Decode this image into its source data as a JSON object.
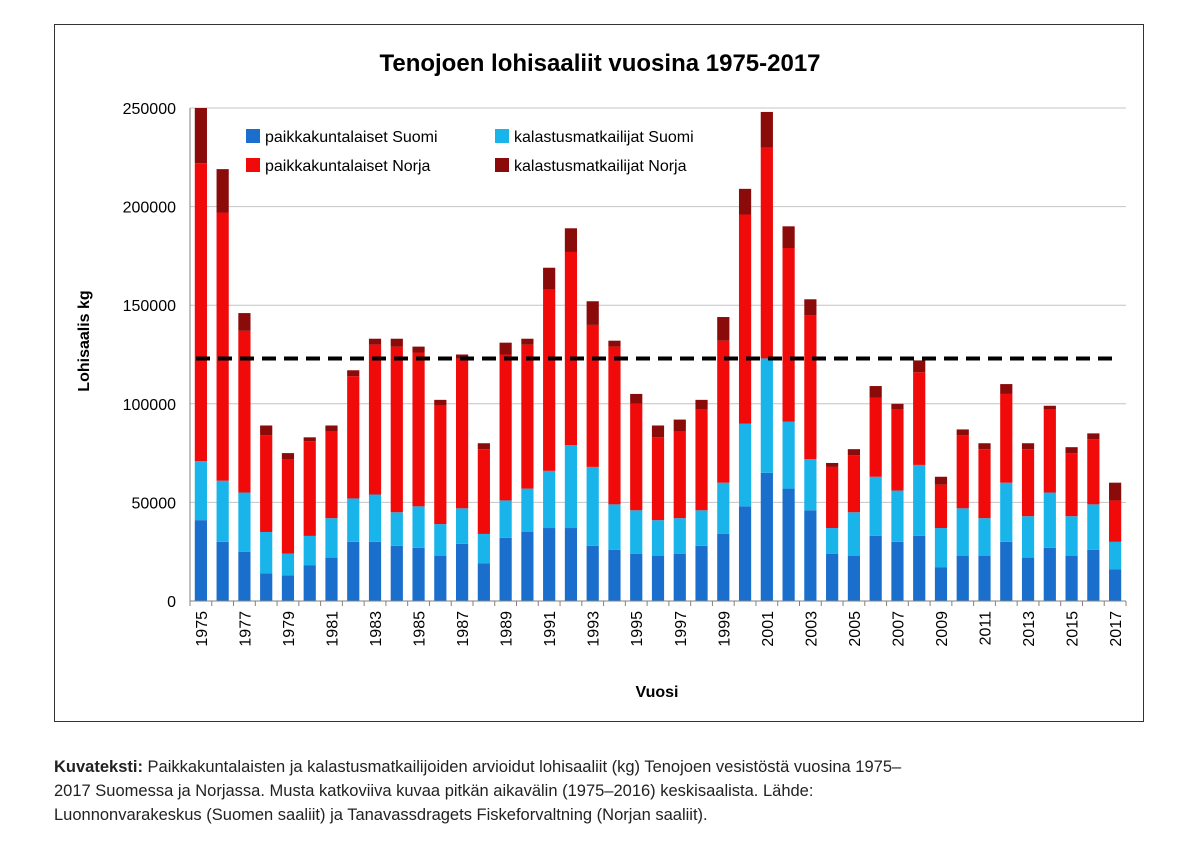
{
  "chart_data": {
    "type": "bar",
    "stacked": true,
    "title": "Tenojoen lohisaaliit vuosina 1975-2017",
    "xlabel": "Vuosi",
    "ylabel": "Lohisaalis kg",
    "ylim": [
      0,
      250000
    ],
    "yticks": [
      0,
      50000,
      100000,
      150000,
      200000,
      250000
    ],
    "ytick_labels": [
      "0",
      "50000",
      "100000",
      "150000",
      "200000",
      "250000"
    ],
    "grid": true,
    "legend_position": "top-left",
    "categories": [
      "1975",
      "1976",
      "1977",
      "1978",
      "1979",
      "1980",
      "1981",
      "1982",
      "1983",
      "1984",
      "1985",
      "1986",
      "1987",
      "1988",
      "1989",
      "1990",
      "1991",
      "1992",
      "1993",
      "1994",
      "1995",
      "1996",
      "1997",
      "1998",
      "1999",
      "2000",
      "2001",
      "2002",
      "2003",
      "2004",
      "2005",
      "2006",
      "2007",
      "2008",
      "2009",
      "2010",
      "2011",
      "2012",
      "2013",
      "2014",
      "2015",
      "2016",
      "2017"
    ],
    "xtick_labels": [
      "1975",
      "1977",
      "1979",
      "1981",
      "1983",
      "1985",
      "1987",
      "1989",
      "1991",
      "1993",
      "1995",
      "1997",
      "1999",
      "2001",
      "2003",
      "2005",
      "2007",
      "2009",
      "2011",
      "2013",
      "2015",
      "2017"
    ],
    "series": [
      {
        "name": "paikkakuntalaiset Suomi",
        "color": "#1a6ecc",
        "values": [
          41000,
          30000,
          25000,
          14000,
          13000,
          18000,
          22000,
          30000,
          30000,
          28000,
          27000,
          23000,
          29000,
          19000,
          32000,
          35000,
          37000,
          37000,
          28000,
          26000,
          24000,
          23000,
          24000,
          28000,
          34000,
          48000,
          65000,
          57000,
          46000,
          24000,
          23000,
          33000,
          30000,
          33000,
          17000,
          23000,
          23000,
          30000,
          22000,
          27000,
          23000,
          26000,
          16000
        ]
      },
      {
        "name": "kalastusmatkailijat Suomi",
        "color": "#19b4ea",
        "values": [
          30000,
          31000,
          30000,
          21000,
          11000,
          15000,
          20000,
          22000,
          24000,
          17000,
          21000,
          16000,
          18000,
          15000,
          19000,
          22000,
          29000,
          42000,
          40000,
          23000,
          22000,
          18000,
          18000,
          18000,
          26000,
          42000,
          58000,
          34000,
          26000,
          13000,
          22000,
          30000,
          26000,
          36000,
          20000,
          24000,
          19000,
          30000,
          21000,
          28000,
          20000,
          23000,
          14000
        ]
      },
      {
        "name": "paikkakuntalaiset Norja",
        "color": "#f00a0a",
        "values": [
          151000,
          136000,
          82000,
          49000,
          48000,
          48000,
          44000,
          62000,
          76000,
          84000,
          78000,
          60000,
          76000,
          43000,
          74000,
          73000,
          92000,
          98000,
          72000,
          80000,
          54000,
          42000,
          44000,
          51000,
          72000,
          106000,
          107000,
          88000,
          73000,
          31000,
          29000,
          40000,
          41000,
          47000,
          22000,
          37000,
          35000,
          45000,
          34000,
          42000,
          32000,
          33000,
          21000
        ]
      },
      {
        "name": "kalastusmatkailijat Norja",
        "color": "#8b0a0a",
        "values": [
          28000,
          22000,
          9000,
          5000,
          3000,
          2000,
          3000,
          3000,
          3000,
          4000,
          3000,
          3000,
          2000,
          3000,
          6000,
          3000,
          11000,
          12000,
          12000,
          3000,
          5000,
          6000,
          6000,
          5000,
          12000,
          13000,
          18000,
          11000,
          8000,
          2000,
          3000,
          6000,
          3000,
          6000,
          4000,
          3000,
          3000,
          5000,
          3000,
          2000,
          3000,
          3000,
          9000
        ]
      }
    ],
    "reference_line": {
      "label": "pitkän aikavälin (1975–2016) keskisaalis",
      "value": 123000,
      "style": "dashed",
      "color": "#000000"
    }
  },
  "caption": {
    "label": "Kuvateksti:",
    "line1": "Paikkakuntalaisten ja kalastusmatkailijoiden arvioidut lohisaaliit (kg) Tenojoen vesistöstä vuosina 1975–",
    "line2": "2017 Suomessa ja Norjassa. Musta katkoviiva kuvaa pitkän aikavälin (1975–2016) keskisaalista. Lähde:",
    "line3": "Luonnonvarakeskus (Suomen saaliit) ja Tanavassdragets Fiskeforvaltning (Norjan saaliit)."
  }
}
